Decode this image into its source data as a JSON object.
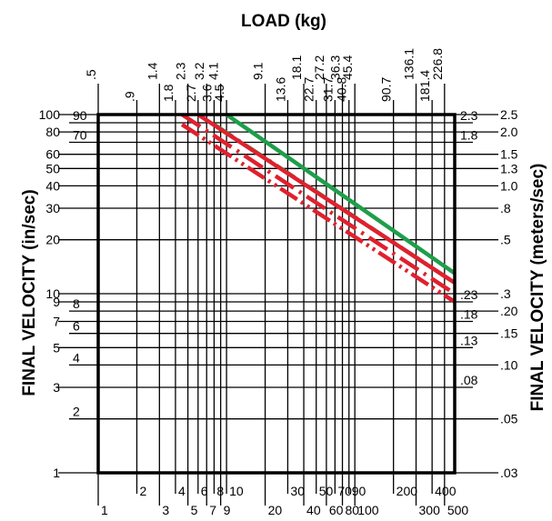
{
  "chart_data": {
    "type": "line",
    "title": "LOAD (kg)",
    "ylabel": "FINAL VELOCITY (in/sec)",
    "y2label": "FINAL VELOCITY (meters/sec)",
    "xlabel": "",
    "xscale": "log",
    "yscale": "log",
    "xlim": [
      1,
      600
    ],
    "ylim": [
      1,
      100
    ],
    "grid": true,
    "legend": "none",
    "colors": {
      "frame": "#000000",
      "green": "#1e9e4a",
      "red": "#e0202e"
    },
    "bottom_ticks": [
      {
        "v": 1,
        "l": "1",
        "row": 1
      },
      {
        "v": 2,
        "l": "2",
        "row": 0
      },
      {
        "v": 3,
        "l": "3",
        "row": 1
      },
      {
        "v": 4,
        "l": "4",
        "row": 0
      },
      {
        "v": 5,
        "l": "5",
        "row": 1
      },
      {
        "v": 6,
        "l": "6",
        "row": 0
      },
      {
        "v": 7,
        "l": "7",
        "row": 1
      },
      {
        "v": 8,
        "l": "8",
        "row": 0
      },
      {
        "v": 9,
        "l": "9",
        "row": 1
      },
      {
        "v": 10,
        "l": "10",
        "row": 0
      },
      {
        "v": 20,
        "l": "20",
        "row": 1
      },
      {
        "v": 30,
        "l": "30",
        "row": 0
      },
      {
        "v": 40,
        "l": "40",
        "row": 1
      },
      {
        "v": 50,
        "l": "50",
        "row": 0
      },
      {
        "v": 60,
        "l": "60",
        "row": 1
      },
      {
        "v": 70,
        "l": "70",
        "row": 0
      },
      {
        "v": 80,
        "l": "80",
        "row": 1
      },
      {
        "v": 90,
        "l": "90",
        "row": 0
      },
      {
        "v": 100,
        "l": "100",
        "row": 1
      },
      {
        "v": 200,
        "l": "200",
        "row": 0
      },
      {
        "v": 300,
        "l": "300",
        "row": 1
      },
      {
        "v": 400,
        "l": "400",
        "row": 0
      },
      {
        "v": 500,
        "l": "500",
        "row": 1
      }
    ],
    "top_ticks": [
      {
        "v": 1,
        "l": ".5",
        "row": 0
      },
      {
        "v": 2,
        "l": ".9",
        "row": 1
      },
      {
        "v": 3,
        "l": "1.4",
        "row": 0
      },
      {
        "v": 4,
        "l": "1.8",
        "row": 1
      },
      {
        "v": 5,
        "l": "2.3",
        "row": 0
      },
      {
        "v": 6,
        "l": "2.7",
        "row": 1
      },
      {
        "v": 7,
        "l": "3.2",
        "row": 0
      },
      {
        "v": 8,
        "l": "3.6",
        "row": 1
      },
      {
        "v": 9,
        "l": "4.1",
        "row": 0
      },
      {
        "v": 10,
        "l": "4.5",
        "row": 1
      },
      {
        "v": 20,
        "l": "9.1",
        "row": 0
      },
      {
        "v": 30,
        "l": "13.6",
        "row": 1
      },
      {
        "v": 40,
        "l": "18.1",
        "row": 0
      },
      {
        "v": 50,
        "l": "22.7",
        "row": 1
      },
      {
        "v": 60,
        "l": "27.2",
        "row": 0
      },
      {
        "v": 70,
        "l": "31.7",
        "row": 1
      },
      {
        "v": 80,
        "l": "36.3",
        "row": 0
      },
      {
        "v": 90,
        "l": "40.8",
        "row": 1
      },
      {
        "v": 100,
        "l": "45.4",
        "row": 0
      },
      {
        "v": 200,
        "l": "90.7",
        "row": 1
      },
      {
        "v": 300,
        "l": "136.1",
        "row": 0
      },
      {
        "v": 400,
        "l": "181.4",
        "row": 1
      },
      {
        "v": 500,
        "l": "226.8",
        "row": 0
      }
    ],
    "left_ticks": [
      {
        "v": 100,
        "l": "100"
      },
      {
        "v": 90,
        "l": "90"
      },
      {
        "v": 80,
        "l": "80"
      },
      {
        "v": 70,
        "l": "70"
      },
      {
        "v": 60,
        "l": "60"
      },
      {
        "v": 50,
        "l": "50"
      },
      {
        "v": 40,
        "l": "40"
      },
      {
        "v": 30,
        "l": "30"
      },
      {
        "v": 20,
        "l": "20"
      },
      {
        "v": 10,
        "l": "10"
      },
      {
        "v": 9,
        "l": "9"
      },
      {
        "v": 8,
        "l": "8"
      },
      {
        "v": 7,
        "l": "7"
      },
      {
        "v": 6,
        "l": "6"
      },
      {
        "v": 5,
        "l": "5"
      },
      {
        "v": 4,
        "l": "4"
      },
      {
        "v": 3,
        "l": "3"
      },
      {
        "v": 2,
        "l": "2"
      },
      {
        "v": 1,
        "l": "1"
      }
    ],
    "right_ticks": [
      {
        "v": 100,
        "l": "2.5"
      },
      {
        "v": 90,
        "l": "2.3"
      },
      {
        "v": 80,
        "l": "2.0"
      },
      {
        "v": 70,
        "l": "1.8"
      },
      {
        "v": 60,
        "l": "1.5"
      },
      {
        "v": 50,
        "l": "1.3"
      },
      {
        "v": 40,
        "l": "1.0"
      },
      {
        "v": 30,
        "l": ".8"
      },
      {
        "v": 20,
        "l": ".5"
      },
      {
        "v": 10,
        "l": ".3"
      },
      {
        "v": 9,
        "l": ".23"
      },
      {
        "v": 8,
        "l": ".20"
      },
      {
        "v": 7,
        "l": ".18"
      },
      {
        "v": 6,
        "l": ".15"
      },
      {
        "v": 5,
        "l": ".13"
      },
      {
        "v": 4,
        "l": ".10"
      },
      {
        "v": 3,
        "l": ".08"
      },
      {
        "v": 2,
        "l": ".05"
      },
      {
        "v": 1,
        "l": ".03"
      }
    ],
    "series": [
      {
        "color": "green",
        "style": "solid",
        "x": [
          10,
          600
        ],
        "y": [
          100,
          13
        ]
      },
      {
        "color": "green",
        "style": "dashdot",
        "x": [
          8,
          600
        ],
        "y": [
          88,
          11.5
        ]
      },
      {
        "color": "red",
        "style": "solid",
        "x": [
          6,
          600
        ],
        "y": [
          100,
          11.5
        ]
      },
      {
        "color": "red",
        "style": "dashdot",
        "x": [
          4.5,
          600
        ],
        "y": [
          100,
          10
        ]
      },
      {
        "color": "red",
        "style": "dashdotdot",
        "x": [
          4.5,
          600
        ],
        "y": [
          88,
          9
        ]
      }
    ]
  }
}
